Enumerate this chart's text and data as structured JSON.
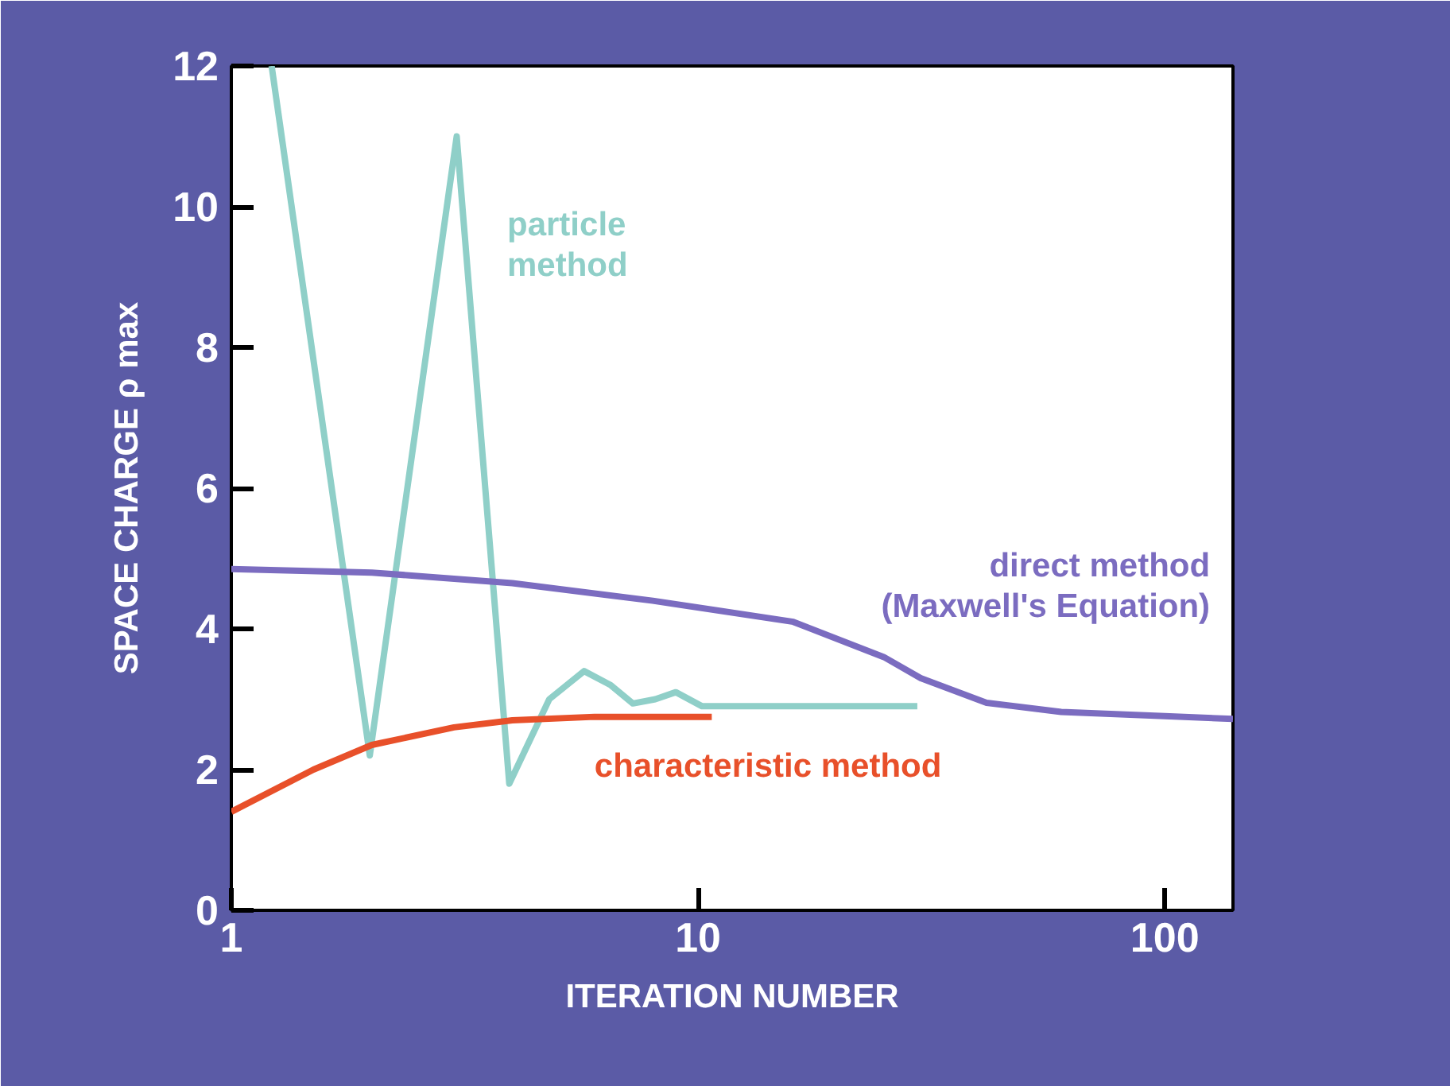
{
  "chart_data": {
    "type": "line",
    "xlabel": "ITERATION NUMBER",
    "ylabel": "SPACE CHARGE ρ max",
    "log": "x",
    "xlim": [
      1,
      140
    ],
    "xticks": [
      1,
      10,
      100
    ],
    "ylim": [
      0,
      12
    ],
    "yticks": [
      0,
      2,
      4,
      6,
      8,
      10,
      12
    ],
    "grid": false,
    "marker": "none",
    "line_style": "solid",
    "series": [
      {
        "name": "particle\nmethod",
        "color": "#8fcfc8",
        "x": [
          1.22,
          1.98,
          3.04,
          3.94,
          4.8,
          5.7,
          6.5,
          7.25,
          8.1,
          8.96,
          10.2,
          15,
          29.5
        ],
        "values": [
          12,
          2.2,
          11,
          1.8,
          3.0,
          3.4,
          3.2,
          2.94,
          3.0,
          3.1,
          2.9,
          2.9,
          2.9
        ]
      },
      {
        "name": "direct method\n(Maxwell's Equation)",
        "color": "#7b6cc0",
        "x": [
          1,
          2,
          4,
          8,
          16,
          25,
          30,
          41.5,
          60,
          100,
          140
        ],
        "values": [
          4.85,
          4.8,
          4.65,
          4.4,
          4.1,
          3.6,
          3.3,
          2.95,
          2.82,
          2.76,
          2.72
        ]
      },
      {
        "name": "characteristic method",
        "color": "#e8502a",
        "x": [
          1,
          1.5,
          2,
          3,
          4,
          6,
          10.7
        ],
        "values": [
          1.4,
          2.0,
          2.35,
          2.6,
          2.7,
          2.75,
          2.75
        ]
      }
    ]
  }
}
